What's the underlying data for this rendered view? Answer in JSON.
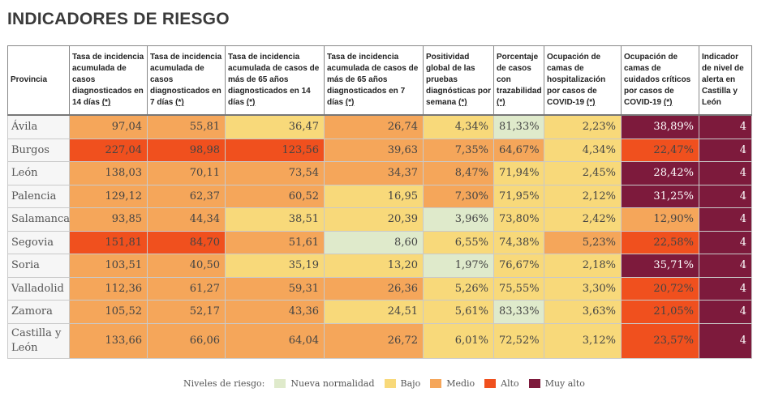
{
  "title": "INDICADORES DE RIESGO",
  "columns": [
    {
      "label": "Provincia",
      "star": ""
    },
    {
      "label": "Tasa de incidencia acumulada de casos diagnosticados en 14 días ",
      "star": "(*)"
    },
    {
      "label": "Tasa de incidencia acumulada de casos diagnosticados en 7 días ",
      "star": "(*)"
    },
    {
      "label": "Tasa de incidencia acumulada de casos de más de 65 años diagnosticados en 14 días ",
      "star": "(*)"
    },
    {
      "label": "Tasa de incidencia acumulada de casos de más de 65 años diagnosticados en 7 días ",
      "star": "(*)"
    },
    {
      "label": "Positividad global de las pruebas diagnósticas por semana ",
      "star": "(*)"
    },
    {
      "label": "Porcentaje de casos con trazabilidad ",
      "star": "(*)"
    },
    {
      "label": "Ocupación de camas de hospitalización por casos de COVID-19 ",
      "star": "(*)"
    },
    {
      "label": "Ocupación de camas de cuidados críticos por casos de COVID-19 ",
      "star": "(*)"
    },
    {
      "label": "Indicador de nivel de alerta en Castilla y León",
      "star": ""
    }
  ],
  "rows": [
    {
      "name": "Ávila",
      "cells": [
        {
          "v": "97,04",
          "l": "m"
        },
        {
          "v": "55,81",
          "l": "m"
        },
        {
          "v": "36,47",
          "l": "b"
        },
        {
          "v": "26,74",
          "l": "m"
        },
        {
          "v": "4,34%",
          "l": "b"
        },
        {
          "v": "81,33%",
          "l": "nn"
        },
        {
          "v": "2,23%",
          "l": "b"
        },
        {
          "v": "38,89%",
          "l": "ma"
        },
        {
          "v": "4",
          "l": "ma"
        }
      ]
    },
    {
      "name": "Burgos",
      "cells": [
        {
          "v": "227,04",
          "l": "a"
        },
        {
          "v": "98,98",
          "l": "a"
        },
        {
          "v": "123,56",
          "l": "a"
        },
        {
          "v": "39,63",
          "l": "m"
        },
        {
          "v": "7,35%",
          "l": "m"
        },
        {
          "v": "64,67%",
          "l": "m"
        },
        {
          "v": "4,34%",
          "l": "b"
        },
        {
          "v": "22,47%",
          "l": "a"
        },
        {
          "v": "4",
          "l": "ma"
        }
      ]
    },
    {
      "name": "León",
      "cells": [
        {
          "v": "138,03",
          "l": "m"
        },
        {
          "v": "70,11",
          "l": "m"
        },
        {
          "v": "73,54",
          "l": "m"
        },
        {
          "v": "34,37",
          "l": "m"
        },
        {
          "v": "8,47%",
          "l": "m"
        },
        {
          "v": "71,94%",
          "l": "b"
        },
        {
          "v": "2,45%",
          "l": "b"
        },
        {
          "v": "28,42%",
          "l": "ma"
        },
        {
          "v": "4",
          "l": "ma"
        }
      ]
    },
    {
      "name": "Palencia",
      "cells": [
        {
          "v": "129,12",
          "l": "m"
        },
        {
          "v": "62,37",
          "l": "m"
        },
        {
          "v": "60,52",
          "l": "m"
        },
        {
          "v": "16,95",
          "l": "b"
        },
        {
          "v": "7,30%",
          "l": "m"
        },
        {
          "v": "71,95%",
          "l": "b"
        },
        {
          "v": "2,12%",
          "l": "b"
        },
        {
          "v": "31,25%",
          "l": "ma"
        },
        {
          "v": "4",
          "l": "ma"
        }
      ]
    },
    {
      "name": "Salamanca",
      "cells": [
        {
          "v": "93,85",
          "l": "m"
        },
        {
          "v": "44,34",
          "l": "m"
        },
        {
          "v": "38,51",
          "l": "b"
        },
        {
          "v": "20,39",
          "l": "b"
        },
        {
          "v": "3,96%",
          "l": "nn"
        },
        {
          "v": "73,80%",
          "l": "b"
        },
        {
          "v": "2,42%",
          "l": "b"
        },
        {
          "v": "12,90%",
          "l": "m"
        },
        {
          "v": "4",
          "l": "ma"
        }
      ]
    },
    {
      "name": "Segovia",
      "cells": [
        {
          "v": "151,81",
          "l": "a"
        },
        {
          "v": "84,70",
          "l": "a"
        },
        {
          "v": "51,61",
          "l": "m"
        },
        {
          "v": "8,60",
          "l": "nn"
        },
        {
          "v": "6,55%",
          "l": "b"
        },
        {
          "v": "74,38%",
          "l": "b"
        },
        {
          "v": "5,23%",
          "l": "m"
        },
        {
          "v": "22,58%",
          "l": "a"
        },
        {
          "v": "4",
          "l": "ma"
        }
      ]
    },
    {
      "name": "Soria",
      "cells": [
        {
          "v": "103,51",
          "l": "m"
        },
        {
          "v": "40,50",
          "l": "m"
        },
        {
          "v": "35,19",
          "l": "b"
        },
        {
          "v": "13,20",
          "l": "b"
        },
        {
          "v": "1,97%",
          "l": "nn"
        },
        {
          "v": "76,67%",
          "l": "b"
        },
        {
          "v": "2,18%",
          "l": "b"
        },
        {
          "v": "35,71%",
          "l": "ma"
        },
        {
          "v": "4",
          "l": "ma"
        }
      ]
    },
    {
      "name": "Valladolid",
      "cells": [
        {
          "v": "112,36",
          "l": "m"
        },
        {
          "v": "61,27",
          "l": "m"
        },
        {
          "v": "59,31",
          "l": "m"
        },
        {
          "v": "26,36",
          "l": "m"
        },
        {
          "v": "5,26%",
          "l": "b"
        },
        {
          "v": "75,55%",
          "l": "b"
        },
        {
          "v": "3,30%",
          "l": "b"
        },
        {
          "v": "20,72%",
          "l": "a"
        },
        {
          "v": "4",
          "l": "ma"
        }
      ]
    },
    {
      "name": "Zamora",
      "cells": [
        {
          "v": "105,52",
          "l": "m"
        },
        {
          "v": "52,17",
          "l": "m"
        },
        {
          "v": "43,36",
          "l": "m"
        },
        {
          "v": "24,51",
          "l": "b"
        },
        {
          "v": "5,61%",
          "l": "b"
        },
        {
          "v": "83,33%",
          "l": "nn"
        },
        {
          "v": "3,63%",
          "l": "b"
        },
        {
          "v": "21,05%",
          "l": "a"
        },
        {
          "v": "4",
          "l": "ma"
        }
      ]
    },
    {
      "name": "Castilla y León",
      "cells": [
        {
          "v": "133,66",
          "l": "m"
        },
        {
          "v": "66,06",
          "l": "m"
        },
        {
          "v": "64,04",
          "l": "m"
        },
        {
          "v": "26,72",
          "l": "m"
        },
        {
          "v": "6,01%",
          "l": "b"
        },
        {
          "v": "72,52%",
          "l": "b"
        },
        {
          "v": "3,12%",
          "l": "b"
        },
        {
          "v": "23,57%",
          "l": "a"
        },
        {
          "v": "4",
          "l": "ma"
        }
      ]
    }
  ],
  "legend": {
    "label": "Niveles de riesgo:",
    "items": [
      {
        "key": "nn",
        "label": "Nueva normalidad",
        "color": "#dfeacb"
      },
      {
        "key": "b",
        "label": "Bajo",
        "color": "#f8d97a"
      },
      {
        "key": "m",
        "label": "Medio",
        "color": "#f5a65a"
      },
      {
        "key": "a",
        "label": "Alto",
        "color": "#f0501e"
      },
      {
        "key": "ma",
        "label": "Muy alto",
        "color": "#7d1a3c"
      }
    ]
  }
}
